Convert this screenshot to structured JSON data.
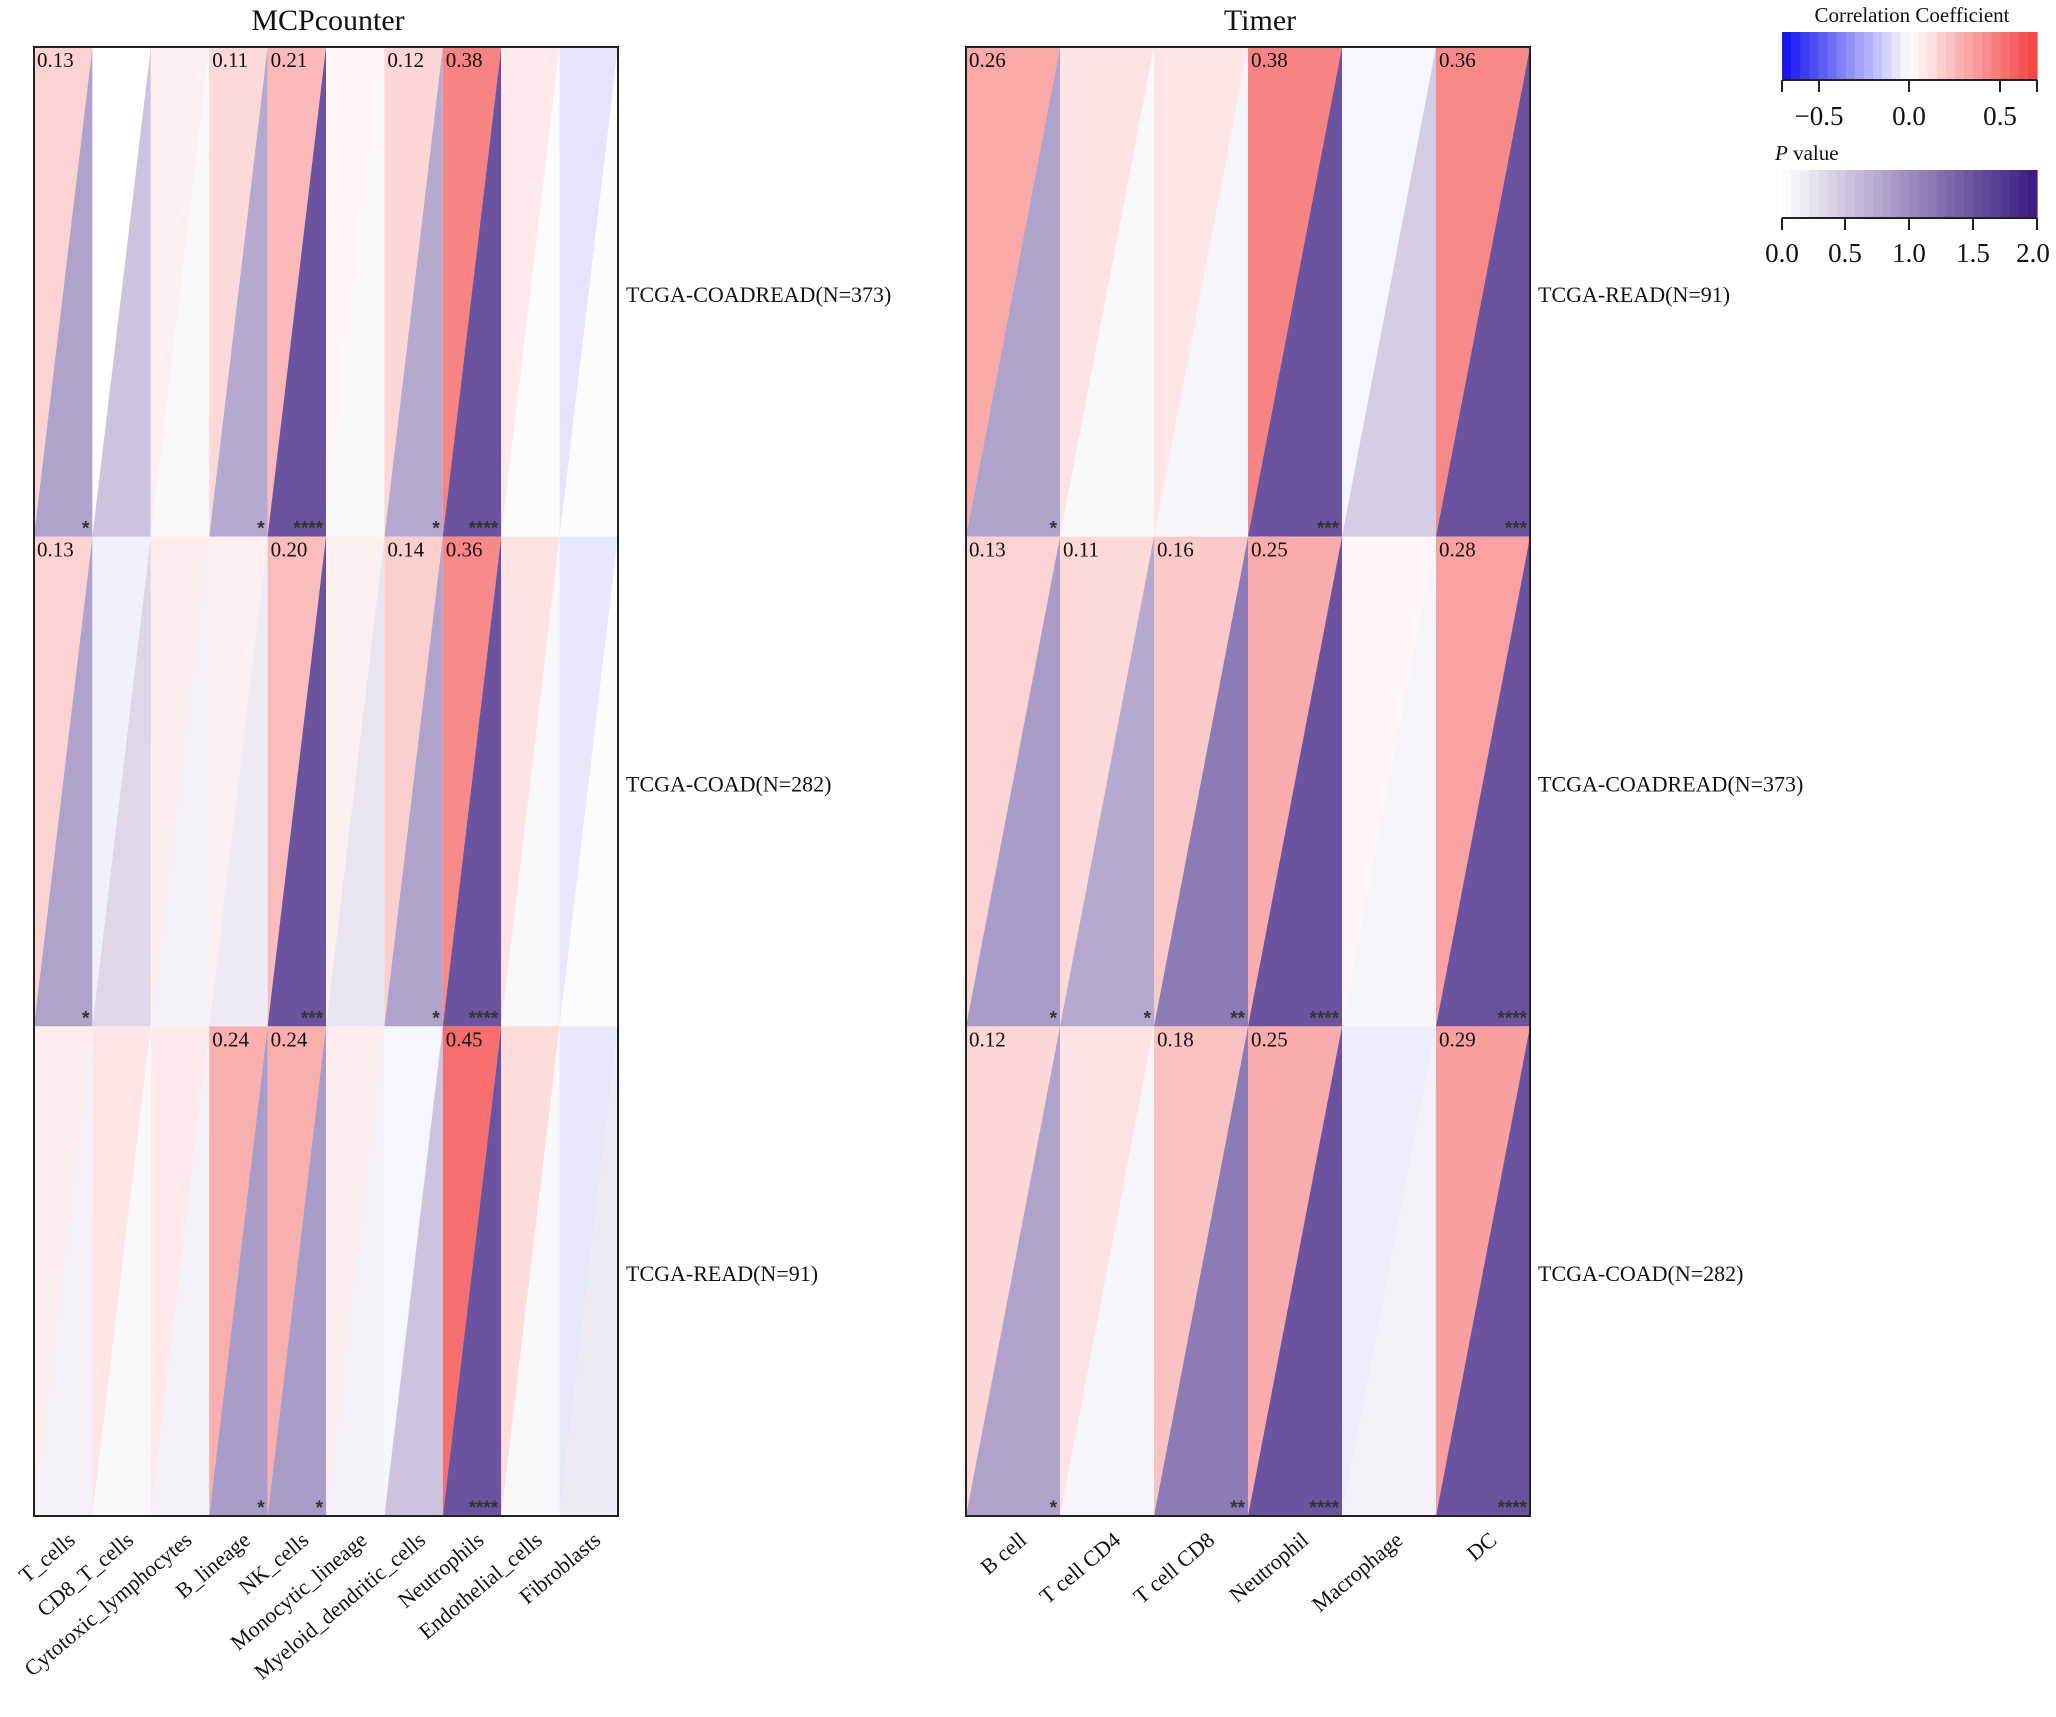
{
  "colors": {
    "positive": "#f44040",
    "negative": "#1010ee",
    "pvalue": "#3a1a80",
    "frame": "#222222"
  },
  "legend": {
    "corr_title": "Correlation Coefficient",
    "corr_ticks": [
      "−0.5",
      "0.0",
      "0.5"
    ],
    "p_title_italic": "P",
    "p_title_rest": " value",
    "p_ticks": [
      "0.0",
      "0.5",
      "1.0",
      "1.5",
      "2.0"
    ]
  },
  "chart_data": [
    {
      "type": "heatmap",
      "title": "MCPcounter",
      "columns": [
        "T_cells",
        "CD8_T_cells",
        "Cytotoxic_lymphocytes",
        "B_lineage",
        "NK_cells",
        "Monocytic_lineage",
        "Myeloid_dendritic_cells",
        "Neutrophils",
        "Endothelial_cells",
        "Fibroblasts"
      ],
      "rows": [
        {
          "label": "TCGA-COADREAD(N=373)",
          "corr": [
            0.13,
            0.0,
            0.04,
            0.11,
            0.21,
            0.02,
            0.12,
            0.38,
            0.06,
            -0.06
          ],
          "logp": [
            1.4,
            0.9,
            0.1,
            1.3,
            3.4,
            0.1,
            1.3,
            6.0,
            0.05,
            0.05
          ],
          "labels": [
            "0.13",
            "",
            "",
            "0.11",
            "0.21",
            "",
            "0.12",
            "0.38",
            "",
            ""
          ],
          "stars": [
            "*",
            "",
            "",
            "*",
            "****",
            "",
            "*",
            "****",
            "",
            ""
          ]
        },
        {
          "label": "TCGA-COAD(N=282)",
          "corr": [
            0.13,
            -0.03,
            0.05,
            0.04,
            0.2,
            0.04,
            0.14,
            0.36,
            0.08,
            -0.05
          ],
          "logp": [
            1.4,
            0.6,
            0.2,
            0.3,
            3.0,
            0.4,
            1.4,
            6.0,
            0.1,
            0.05
          ],
          "labels": [
            "0.13",
            "",
            "",
            "",
            "0.20",
            "",
            "0.14",
            "0.36",
            "",
            ""
          ],
          "stars": [
            "*",
            "",
            "",
            "",
            "***",
            "",
            "*",
            "****",
            "",
            ""
          ]
        },
        {
          "label": "TCGA-READ(N=91)",
          "corr": [
            0.05,
            0.07,
            0.06,
            0.24,
            0.24,
            0.05,
            -0.02,
            0.45,
            0.1,
            -0.05
          ],
          "logp": [
            0.2,
            0.1,
            0.2,
            1.5,
            1.5,
            0.2,
            0.9,
            4.0,
            0.1,
            0.3
          ],
          "labels": [
            "",
            "",
            "",
            "0.24",
            "0.24",
            "",
            "",
            "0.45",
            "",
            ""
          ],
          "stars": [
            "",
            "",
            "",
            "*",
            "*",
            "",
            "",
            "****",
            "",
            ""
          ]
        }
      ]
    },
    {
      "type": "heatmap",
      "title": "Timer",
      "columns": [
        "B cell",
        "T cell CD4",
        "T cell CD8",
        "Neutrophil",
        "Macrophage",
        "DC"
      ],
      "rows": [
        {
          "label": "TCGA-READ(N=91)",
          "corr": [
            0.26,
            0.08,
            0.07,
            0.38,
            -0.02,
            0.36
          ],
          "logp": [
            1.4,
            0.1,
            0.15,
            3.0,
            0.75,
            3.0
          ],
          "labels": [
            "0.26",
            "",
            "",
            "0.38",
            "",
            "0.36"
          ],
          "stars": [
            "*",
            "",
            "",
            "***",
            "",
            "***"
          ]
        },
        {
          "label": "TCGA-COADREAD(N=373)",
          "corr": [
            0.13,
            0.11,
            0.16,
            0.25,
            0.02,
            0.28
          ],
          "logp": [
            1.5,
            1.3,
            2.0,
            4.0,
            0.15,
            4.0
          ],
          "labels": [
            "0.13",
            "0.11",
            "0.16",
            "0.25",
            "",
            "0.28"
          ],
          "stars": [
            "*",
            "*",
            "**",
            "****",
            "",
            "****"
          ]
        },
        {
          "label": "TCGA-COAD(N=282)",
          "corr": [
            0.12,
            0.08,
            0.18,
            0.25,
            -0.04,
            0.29
          ],
          "logp": [
            1.4,
            0.15,
            2.0,
            4.0,
            0.2,
            4.0
          ],
          "labels": [
            "0.12",
            "",
            "0.18",
            "0.25",
            "",
            "0.29"
          ],
          "stars": [
            "*",
            "",
            "**",
            "****",
            "",
            "****"
          ]
        }
      ]
    }
  ]
}
